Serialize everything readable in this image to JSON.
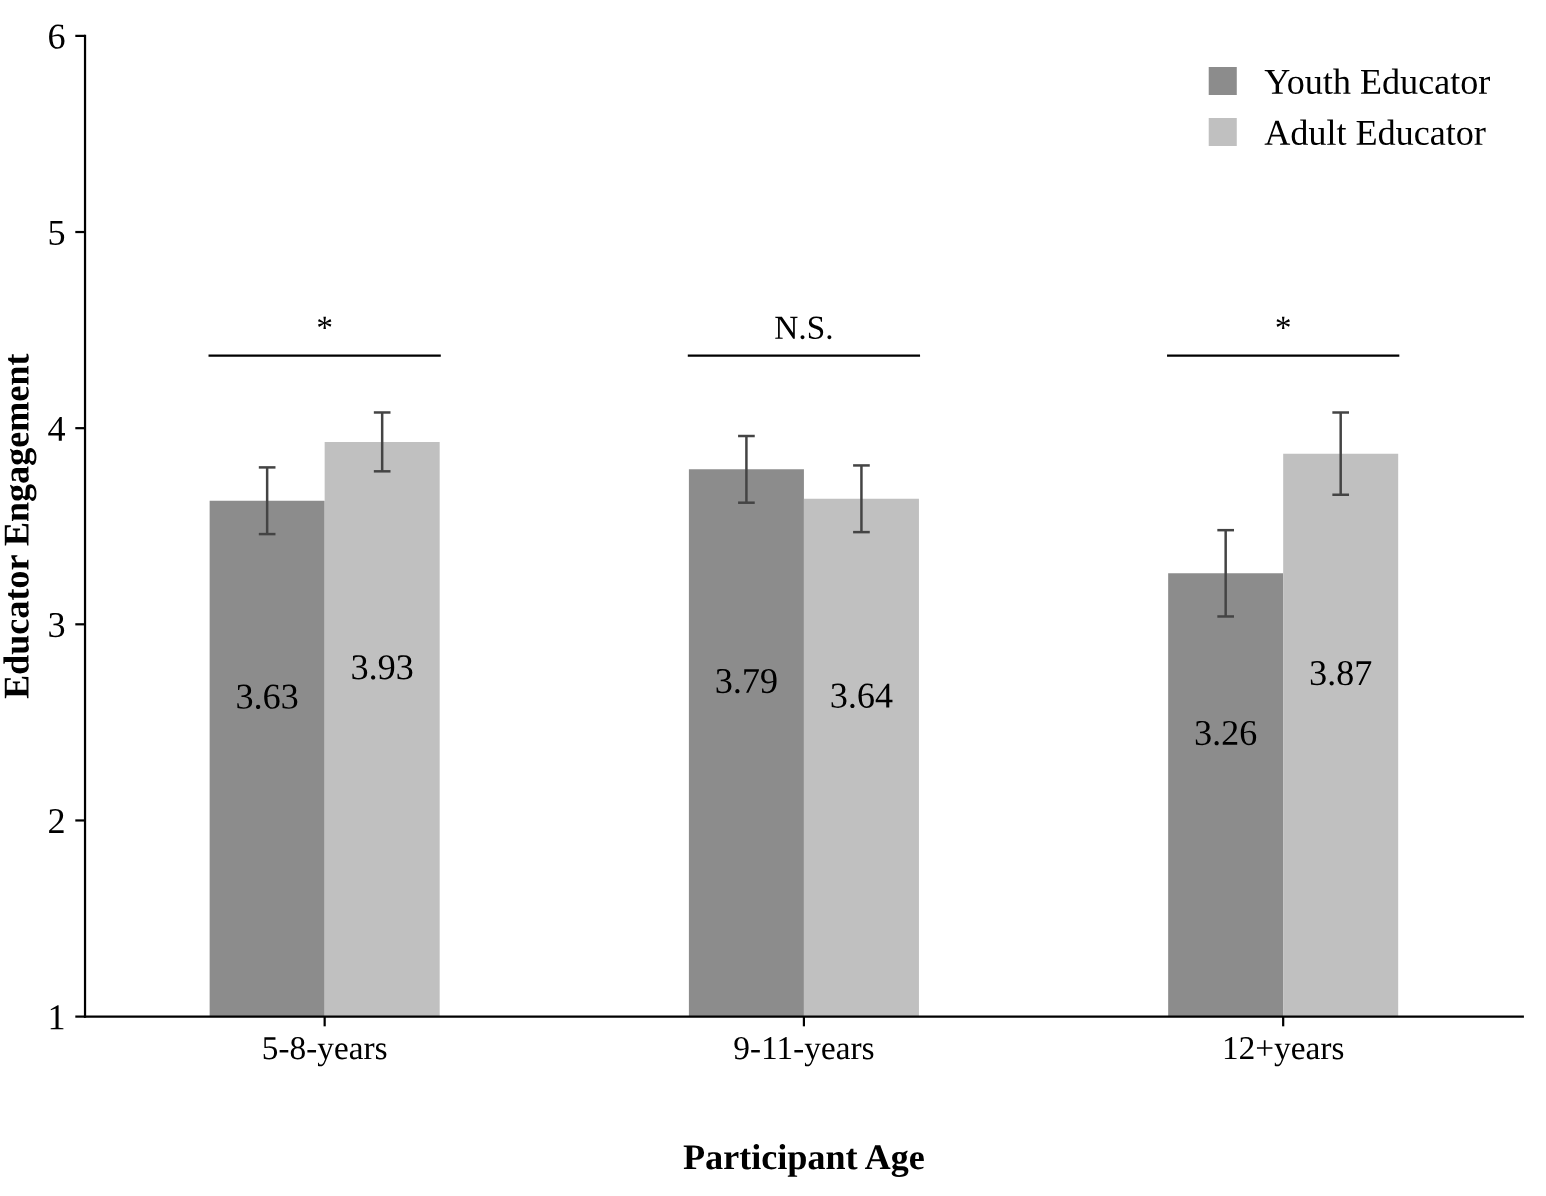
{
  "chart_data": {
    "type": "bar",
    "xlabel": "Participant Age",
    "ylabel": "Educator Engagement",
    "categories": [
      "5-8-years",
      "9-11-years",
      "12+years"
    ],
    "series": [
      {
        "name": "Youth Educator",
        "color": "#8c8c8c",
        "values": [
          3.63,
          3.79,
          3.26
        ],
        "errors": [
          0.17,
          0.17,
          0.22
        ]
      },
      {
        "name": "Adult Educator",
        "color": "#c0c0c0",
        "values": [
          3.93,
          3.64,
          3.87
        ],
        "errors": [
          0.15,
          0.17,
          0.21
        ]
      }
    ],
    "data_labels": true,
    "ylim": [
      1,
      6
    ],
    "yticks": [
      1,
      2,
      3,
      4,
      5,
      6
    ],
    "grid": false,
    "legend": "top right",
    "annotations": [
      "*",
      "N.S.",
      "*"
    ]
  }
}
